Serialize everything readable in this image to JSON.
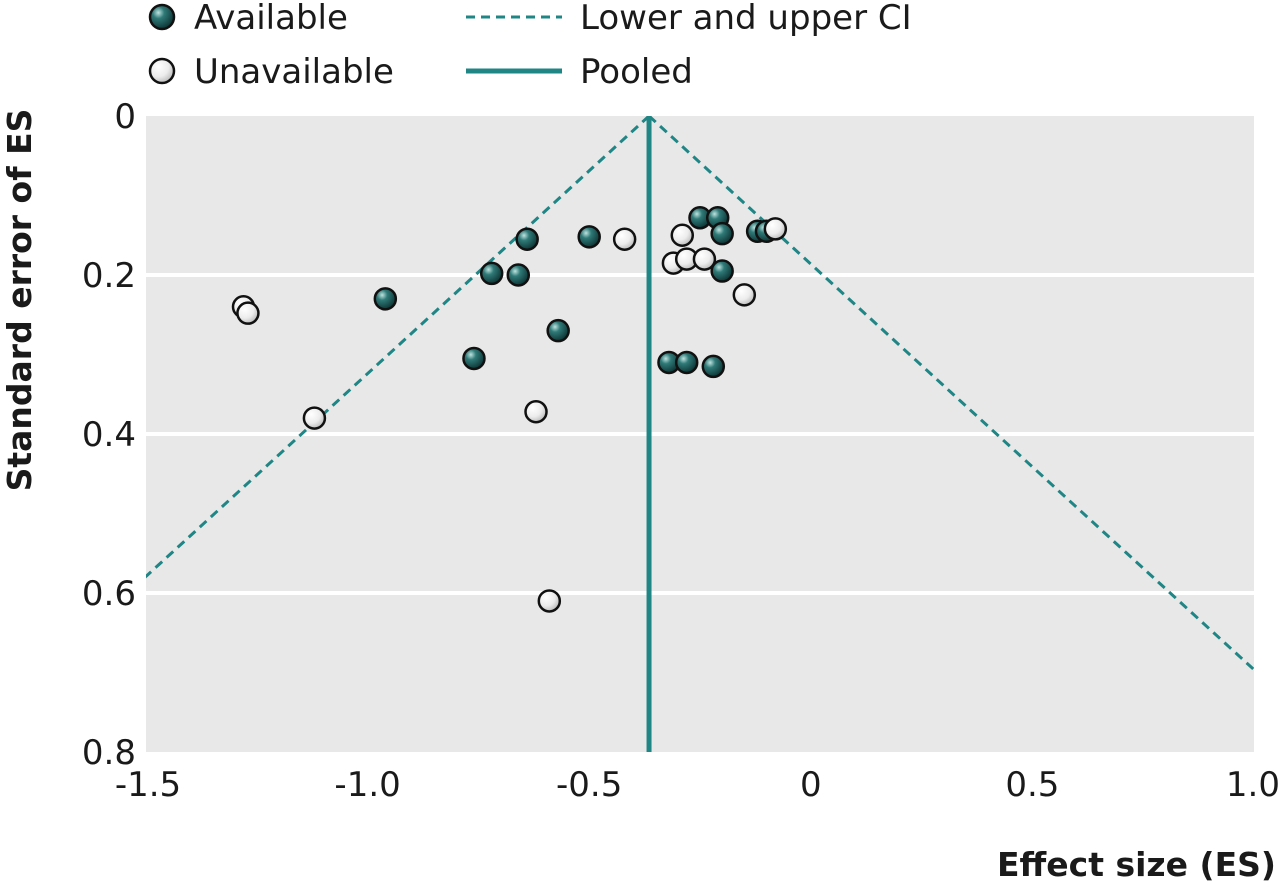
{
  "chart_data": {
    "type": "scatter",
    "title": "",
    "xlabel": "Effect size (ES)",
    "ylabel": "Standard error of ES",
    "xlim": [
      -1.5,
      1.0
    ],
    "ylim": [
      0,
      0.8
    ],
    "y_inverted": true,
    "x_ticks": [
      -1.5,
      -1.0,
      -0.5,
      0,
      0.5,
      1.0
    ],
    "x_tick_labels": [
      "-1.5",
      "-1.0",
      "-0.5",
      "0",
      "0.5",
      "1.0"
    ],
    "y_ticks": [
      0,
      0.2,
      0.4,
      0.6,
      0.8
    ],
    "y_tick_labels": [
      "0",
      "0.2",
      "0.4",
      "0.6",
      "0.8"
    ],
    "grid": "horizontal",
    "legend_position": "top",
    "pooled_es": -0.365,
    "ci_multiplier": 1.96,
    "series": [
      {
        "name": "Available",
        "color": "#1f5b5b",
        "points": [
          {
            "x": -0.96,
            "y": 0.23
          },
          {
            "x": -0.76,
            "y": 0.305
          },
          {
            "x": -0.72,
            "y": 0.198
          },
          {
            "x": -0.66,
            "y": 0.2
          },
          {
            "x": -0.64,
            "y": 0.155
          },
          {
            "x": -0.57,
            "y": 0.27
          },
          {
            "x": -0.5,
            "y": 0.152
          },
          {
            "x": -0.32,
            "y": 0.31
          },
          {
            "x": -0.28,
            "y": 0.31
          },
          {
            "x": -0.22,
            "y": 0.315
          },
          {
            "x": -0.25,
            "y": 0.128
          },
          {
            "x": -0.21,
            "y": 0.128
          },
          {
            "x": -0.2,
            "y": 0.148
          },
          {
            "x": -0.2,
            "y": 0.195
          },
          {
            "x": -0.12,
            "y": 0.145
          },
          {
            "x": -0.1,
            "y": 0.145
          }
        ]
      },
      {
        "name": "Unavailable",
        "color": "#e8e8e8",
        "points": [
          {
            "x": -1.28,
            "y": 0.24
          },
          {
            "x": -1.27,
            "y": 0.248
          },
          {
            "x": -1.12,
            "y": 0.38
          },
          {
            "x": -0.62,
            "y": 0.372
          },
          {
            "x": -0.59,
            "y": 0.61
          },
          {
            "x": -0.42,
            "y": 0.155
          },
          {
            "x": -0.29,
            "y": 0.15
          },
          {
            "x": -0.31,
            "y": 0.185
          },
          {
            "x": -0.28,
            "y": 0.18
          },
          {
            "x": -0.24,
            "y": 0.18
          },
          {
            "x": -0.15,
            "y": 0.225
          },
          {
            "x": -0.08,
            "y": 0.142
          }
        ]
      }
    ],
    "lines": [
      {
        "name": "Lower and upper CI",
        "style": "dashed",
        "color": "#1f8585"
      },
      {
        "name": "Pooled",
        "style": "solid",
        "color": "#1f8585"
      }
    ]
  }
}
